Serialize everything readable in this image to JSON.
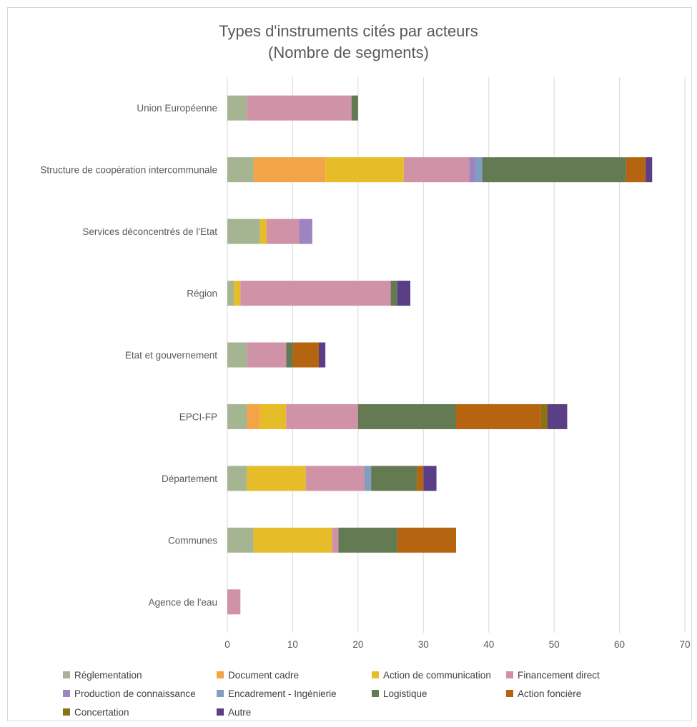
{
  "chart_data": {
    "type": "bar",
    "orientation": "horizontal",
    "stacked": true,
    "title": "Types d'instruments cités par acteurs",
    "subtitle": "(Nombre de segments)",
    "xlabel": "",
    "ylabel": "",
    "xlim": [
      0,
      70
    ],
    "xticks": [
      "0",
      "10",
      "20",
      "30",
      "40",
      "50",
      "60",
      "70"
    ],
    "grid": true,
    "legend_position": "bottom",
    "categories": [
      "Union Européenne",
      "Structure de coopération intercommunale",
      "Services déconcentrés de l'Etat",
      "Région",
      "Etat et gouvernement",
      "EPCI-FP",
      "Département",
      "Communes",
      "Agence de l'eau"
    ],
    "series": [
      {
        "name": "Réglementation",
        "color": "#a5b592",
        "values": [
          3,
          4,
          5,
          1,
          3,
          3,
          3,
          4,
          0
        ]
      },
      {
        "name": "Document cadre",
        "color": "#f3a447",
        "values": [
          0,
          11,
          0,
          0,
          0,
          2,
          0,
          0,
          0
        ]
      },
      {
        "name": "Action de communication",
        "color": "#e7bc29",
        "values": [
          0,
          12,
          1,
          1,
          0,
          4,
          9,
          12,
          0
        ]
      },
      {
        "name": "Financement direct",
        "color": "#d092a7",
        "values": [
          16,
          10,
          5,
          23,
          6,
          11,
          9,
          1,
          2
        ]
      },
      {
        "name": "Production de connaissance",
        "color": "#9c85c0",
        "values": [
          0,
          1,
          2,
          0,
          0,
          0,
          0,
          0,
          0
        ]
      },
      {
        "name": "Encadrement - Ingénierie",
        "color": "#809ec2",
        "values": [
          0,
          1,
          0,
          0,
          0,
          0,
          1,
          0,
          0
        ]
      },
      {
        "name": "Logistique",
        "color": "#637a53",
        "values": [
          1,
          22,
          0,
          1,
          1,
          15,
          7,
          9,
          0
        ]
      },
      {
        "name": "Action foncière",
        "color": "#b5640f",
        "values": [
          0,
          3,
          0,
          0,
          4,
          13,
          1,
          9,
          0
        ]
      },
      {
        "name": "Concertation",
        "color": "#8c7216",
        "values": [
          0,
          0,
          0,
          0,
          0,
          1,
          0,
          0,
          0
        ]
      },
      {
        "name": "Autre",
        "color": "#5b3f86",
        "values": [
          0,
          1,
          0,
          2,
          1,
          3,
          2,
          0,
          0
        ]
      }
    ]
  }
}
